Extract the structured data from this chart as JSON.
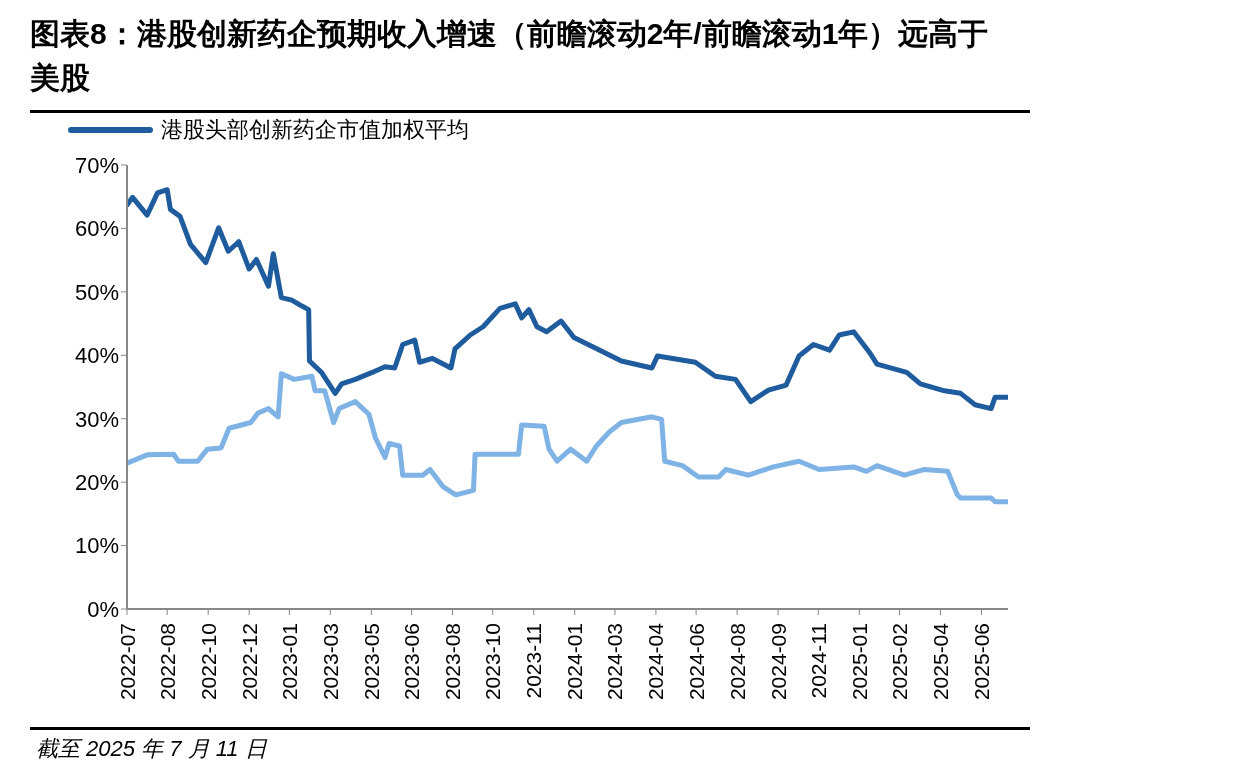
{
  "chart_data": {
    "type": "line",
    "title": "图表8：港股创新药企预期收入增速（前瞻滚动2年/前瞻滚动1年）远高于美股",
    "annotations": [
      "截至 2025 年 7 月 11 日"
    ],
    "xlim": [
      "2022-07-11",
      "2025-07-11"
    ],
    "xticks": [
      {
        "value": "2022-07-11",
        "label": "2022-07"
      },
      {
        "value": "2022-08-30",
        "label": "2022-08"
      },
      {
        "value": "2022-10-20",
        "label": "2022-10"
      },
      {
        "value": "2022-12-10",
        "label": "2022-12"
      },
      {
        "value": "2023-01-29",
        "label": "2023-01"
      },
      {
        "value": "2023-03-21",
        "label": "2023-03"
      },
      {
        "value": "2023-05-11",
        "label": "2023-05"
      },
      {
        "value": "2023-06-30",
        "label": "2023-06"
      },
      {
        "value": "2023-08-20",
        "label": "2023-08"
      },
      {
        "value": "2023-10-09",
        "label": "2023-10"
      },
      {
        "value": "2023-11-29",
        "label": "2023-11"
      },
      {
        "value": "2024-01-19",
        "label": "2024-01"
      },
      {
        "value": "2024-03-09",
        "label": "2024-03"
      },
      {
        "value": "2024-04-29",
        "label": "2024-04"
      },
      {
        "value": "2024-06-18",
        "label": "2024-06"
      },
      {
        "value": "2024-08-08",
        "label": "2024-08"
      },
      {
        "value": "2024-09-28",
        "label": "2024-09"
      },
      {
        "value": "2024-11-17",
        "label": "2024-11"
      },
      {
        "value": "2025-01-07",
        "label": "2025-01"
      },
      {
        "value": "2025-02-26",
        "label": "2025-02"
      },
      {
        "value": "2025-04-18",
        "label": "2025-04"
      },
      {
        "value": "2025-06-08",
        "label": "2025-06"
      }
    ],
    "ylim": [
      0,
      70
    ],
    "yticks": [
      {
        "value": 0,
        "label": "0%"
      },
      {
        "value": 10,
        "label": "10%"
      },
      {
        "value": 20,
        "label": "20%"
      },
      {
        "value": 30,
        "label": "30%"
      },
      {
        "value": 40,
        "label": "40%"
      },
      {
        "value": 50,
        "label": "50%"
      },
      {
        "value": 60,
        "label": "60%"
      },
      {
        "value": 70,
        "label": "70%"
      }
    ],
    "grid": false,
    "legend": "top",
    "marker": "none",
    "line_style": "solid",
    "series": [
      {
        "name": "港股头部创新药企市值加权平均",
        "color": "#1f5c9e",
        "x": [
          "2022-07-11",
          "2022-07-18",
          "2022-08-05",
          "2022-08-18",
          "2022-08-30",
          "2022-09-03",
          "2022-09-15",
          "2022-09-28",
          "2022-10-17",
          "2022-11-02",
          "2022-11-14",
          "2022-11-27",
          "2022-12-10",
          "2022-12-19",
          "2023-01-03",
          "2023-01-09",
          "2023-01-19",
          "2023-02-01",
          "2023-02-13",
          "2023-02-22",
          "2023-02-23",
          "2023-03-10",
          "2023-03-27",
          "2023-04-04",
          "2023-04-21",
          "2023-05-12",
          "2023-05-28",
          "2023-06-09",
          "2023-06-19",
          "2023-07-04",
          "2023-07-10",
          "2023-07-26",
          "2023-08-18",
          "2023-08-23",
          "2023-09-11",
          "2023-09-27",
          "2023-10-18",
          "2023-11-06",
          "2023-11-14",
          "2023-11-23",
          "2023-12-03",
          "2023-12-15",
          "2024-01-02",
          "2024-01-18",
          "2024-02-16",
          "2024-03-17",
          "2024-04-24",
          "2024-05-01",
          "2024-06-17",
          "2024-07-12",
          "2024-08-06",
          "2024-08-25",
          "2024-09-16",
          "2024-10-08",
          "2024-10-24",
          "2024-11-11",
          "2024-12-01",
          "2024-12-13",
          "2024-12-31",
          "2025-01-20",
          "2025-01-29",
          "2025-03-07",
          "2025-03-24",
          "2025-04-23",
          "2025-05-13",
          "2025-05-31",
          "2025-06-20",
          "2025-06-25",
          "2025-07-11"
        ],
        "values": [
          63.7,
          64.9,
          62.1,
          65.6,
          66.1,
          63.0,
          61.9,
          57.5,
          54.6,
          60.1,
          56.4,
          57.9,
          53.6,
          55.1,
          50.9,
          56.0,
          49.1,
          48.7,
          47.8,
          47.2,
          39.1,
          37.3,
          34.0,
          35.5,
          36.2,
          37.3,
          38.2,
          38.0,
          41.7,
          42.4,
          38.9,
          39.5,
          38.0,
          41.0,
          43.2,
          44.5,
          47.4,
          48.1,
          45.9,
          47.2,
          44.5,
          43.7,
          45.4,
          42.8,
          41.0,
          39.1,
          38.0,
          39.9,
          38.9,
          36.7,
          36.2,
          32.7,
          34.5,
          35.3,
          39.9,
          41.7,
          40.8,
          43.2,
          43.7,
          40.4,
          38.6,
          37.3,
          35.5,
          34.4,
          34.0,
          32.2,
          31.6,
          33.4,
          33.4
        ]
      },
      {
        "color": "#7fb2e5",
        "x": [
          "2022-07-11",
          "2022-08-05",
          "2022-09-07",
          "2022-09-13",
          "2022-10-07",
          "2022-10-19",
          "2022-11-05",
          "2022-11-15",
          "2022-12-12",
          "2022-12-21",
          "2023-01-03",
          "2023-01-15",
          "2023-01-19",
          "2023-02-04",
          "2023-02-26",
          "2023-03-02",
          "2023-03-14",
          "2023-03-25",
          "2023-04-01",
          "2023-04-21",
          "2023-05-08",
          "2023-05-16",
          "2023-05-28",
          "2023-06-02",
          "2023-06-15",
          "2023-06-19",
          "2023-07-14",
          "2023-07-23",
          "2023-08-08",
          "2023-08-24",
          "2023-09-15",
          "2023-09-17",
          "2023-11-10",
          "2023-11-14",
          "2023-12-12",
          "2023-12-18",
          "2023-12-28",
          "2024-01-14",
          "2024-02-03",
          "2024-02-15",
          "2024-03-02",
          "2024-03-17",
          "2024-04-24",
          "2024-05-06",
          "2024-05-10",
          "2024-06-01",
          "2024-06-21",
          "2024-07-16",
          "2024-07-25",
          "2024-08-22",
          "2024-09-22",
          "2024-10-24",
          "2024-11-18",
          "2024-12-31",
          "2025-01-16",
          "2025-01-29",
          "2025-03-04",
          "2025-03-29",
          "2025-04-27",
          "2025-05-09",
          "2025-05-13",
          "2025-06-20",
          "2025-06-25",
          "2025-07-11"
        ],
        "values": [
          23.0,
          24.3,
          24.4,
          23.3,
          23.3,
          25.2,
          25.4,
          28.5,
          29.4,
          30.9,
          31.6,
          30.3,
          37.1,
          36.2,
          36.7,
          34.4,
          34.4,
          29.4,
          31.6,
          32.7,
          30.7,
          27.0,
          23.9,
          26.1,
          25.7,
          21.1,
          21.1,
          22.0,
          19.3,
          18.0,
          18.7,
          24.4,
          24.4,
          29.0,
          28.8,
          25.2,
          23.3,
          25.2,
          23.3,
          25.7,
          27.9,
          29.4,
          30.3,
          29.9,
          23.3,
          22.6,
          20.8,
          20.8,
          22.0,
          21.1,
          22.4,
          23.3,
          22.0,
          22.4,
          21.7,
          22.6,
          21.1,
          22.0,
          21.7,
          18.0,
          17.5,
          17.5,
          16.9,
          16.9
        ]
      }
    ]
  }
}
